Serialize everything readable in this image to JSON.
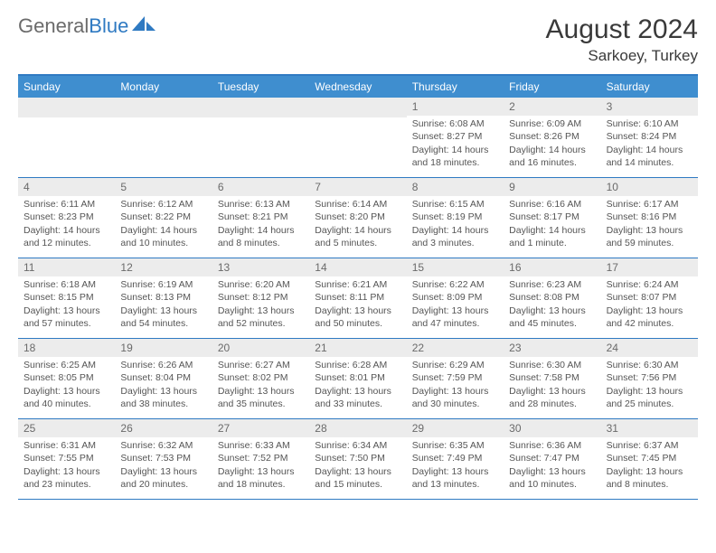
{
  "logo": {
    "text1": "General",
    "text2": "Blue"
  },
  "title": "August 2024",
  "subtitle": "Sarkoey, Turkey",
  "day_names": [
    "Sunday",
    "Monday",
    "Tuesday",
    "Wednesday",
    "Thursday",
    "Friday",
    "Saturday"
  ],
  "colors": {
    "header_bg": "#3f8ecf",
    "border": "#2f7ac2",
    "daynum_bg": "#ececec"
  },
  "weeks": [
    [
      {
        "n": "",
        "sr": "",
        "ss": "",
        "dl": ""
      },
      {
        "n": "",
        "sr": "",
        "ss": "",
        "dl": ""
      },
      {
        "n": "",
        "sr": "",
        "ss": "",
        "dl": ""
      },
      {
        "n": "",
        "sr": "",
        "ss": "",
        "dl": ""
      },
      {
        "n": "1",
        "sr": "Sunrise: 6:08 AM",
        "ss": "Sunset: 8:27 PM",
        "dl": "Daylight: 14 hours and 18 minutes."
      },
      {
        "n": "2",
        "sr": "Sunrise: 6:09 AM",
        "ss": "Sunset: 8:26 PM",
        "dl": "Daylight: 14 hours and 16 minutes."
      },
      {
        "n": "3",
        "sr": "Sunrise: 6:10 AM",
        "ss": "Sunset: 8:24 PM",
        "dl": "Daylight: 14 hours and 14 minutes."
      }
    ],
    [
      {
        "n": "4",
        "sr": "Sunrise: 6:11 AM",
        "ss": "Sunset: 8:23 PM",
        "dl": "Daylight: 14 hours and 12 minutes."
      },
      {
        "n": "5",
        "sr": "Sunrise: 6:12 AM",
        "ss": "Sunset: 8:22 PM",
        "dl": "Daylight: 14 hours and 10 minutes."
      },
      {
        "n": "6",
        "sr": "Sunrise: 6:13 AM",
        "ss": "Sunset: 8:21 PM",
        "dl": "Daylight: 14 hours and 8 minutes."
      },
      {
        "n": "7",
        "sr": "Sunrise: 6:14 AM",
        "ss": "Sunset: 8:20 PM",
        "dl": "Daylight: 14 hours and 5 minutes."
      },
      {
        "n": "8",
        "sr": "Sunrise: 6:15 AM",
        "ss": "Sunset: 8:19 PM",
        "dl": "Daylight: 14 hours and 3 minutes."
      },
      {
        "n": "9",
        "sr": "Sunrise: 6:16 AM",
        "ss": "Sunset: 8:17 PM",
        "dl": "Daylight: 14 hours and 1 minute."
      },
      {
        "n": "10",
        "sr": "Sunrise: 6:17 AM",
        "ss": "Sunset: 8:16 PM",
        "dl": "Daylight: 13 hours and 59 minutes."
      }
    ],
    [
      {
        "n": "11",
        "sr": "Sunrise: 6:18 AM",
        "ss": "Sunset: 8:15 PM",
        "dl": "Daylight: 13 hours and 57 minutes."
      },
      {
        "n": "12",
        "sr": "Sunrise: 6:19 AM",
        "ss": "Sunset: 8:13 PM",
        "dl": "Daylight: 13 hours and 54 minutes."
      },
      {
        "n": "13",
        "sr": "Sunrise: 6:20 AM",
        "ss": "Sunset: 8:12 PM",
        "dl": "Daylight: 13 hours and 52 minutes."
      },
      {
        "n": "14",
        "sr": "Sunrise: 6:21 AM",
        "ss": "Sunset: 8:11 PM",
        "dl": "Daylight: 13 hours and 50 minutes."
      },
      {
        "n": "15",
        "sr": "Sunrise: 6:22 AM",
        "ss": "Sunset: 8:09 PM",
        "dl": "Daylight: 13 hours and 47 minutes."
      },
      {
        "n": "16",
        "sr": "Sunrise: 6:23 AM",
        "ss": "Sunset: 8:08 PM",
        "dl": "Daylight: 13 hours and 45 minutes."
      },
      {
        "n": "17",
        "sr": "Sunrise: 6:24 AM",
        "ss": "Sunset: 8:07 PM",
        "dl": "Daylight: 13 hours and 42 minutes."
      }
    ],
    [
      {
        "n": "18",
        "sr": "Sunrise: 6:25 AM",
        "ss": "Sunset: 8:05 PM",
        "dl": "Daylight: 13 hours and 40 minutes."
      },
      {
        "n": "19",
        "sr": "Sunrise: 6:26 AM",
        "ss": "Sunset: 8:04 PM",
        "dl": "Daylight: 13 hours and 38 minutes."
      },
      {
        "n": "20",
        "sr": "Sunrise: 6:27 AM",
        "ss": "Sunset: 8:02 PM",
        "dl": "Daylight: 13 hours and 35 minutes."
      },
      {
        "n": "21",
        "sr": "Sunrise: 6:28 AM",
        "ss": "Sunset: 8:01 PM",
        "dl": "Daylight: 13 hours and 33 minutes."
      },
      {
        "n": "22",
        "sr": "Sunrise: 6:29 AM",
        "ss": "Sunset: 7:59 PM",
        "dl": "Daylight: 13 hours and 30 minutes."
      },
      {
        "n": "23",
        "sr": "Sunrise: 6:30 AM",
        "ss": "Sunset: 7:58 PM",
        "dl": "Daylight: 13 hours and 28 minutes."
      },
      {
        "n": "24",
        "sr": "Sunrise: 6:30 AM",
        "ss": "Sunset: 7:56 PM",
        "dl": "Daylight: 13 hours and 25 minutes."
      }
    ],
    [
      {
        "n": "25",
        "sr": "Sunrise: 6:31 AM",
        "ss": "Sunset: 7:55 PM",
        "dl": "Daylight: 13 hours and 23 minutes."
      },
      {
        "n": "26",
        "sr": "Sunrise: 6:32 AM",
        "ss": "Sunset: 7:53 PM",
        "dl": "Daylight: 13 hours and 20 minutes."
      },
      {
        "n": "27",
        "sr": "Sunrise: 6:33 AM",
        "ss": "Sunset: 7:52 PM",
        "dl": "Daylight: 13 hours and 18 minutes."
      },
      {
        "n": "28",
        "sr": "Sunrise: 6:34 AM",
        "ss": "Sunset: 7:50 PM",
        "dl": "Daylight: 13 hours and 15 minutes."
      },
      {
        "n": "29",
        "sr": "Sunrise: 6:35 AM",
        "ss": "Sunset: 7:49 PM",
        "dl": "Daylight: 13 hours and 13 minutes."
      },
      {
        "n": "30",
        "sr": "Sunrise: 6:36 AM",
        "ss": "Sunset: 7:47 PM",
        "dl": "Daylight: 13 hours and 10 minutes."
      },
      {
        "n": "31",
        "sr": "Sunrise: 6:37 AM",
        "ss": "Sunset: 7:45 PM",
        "dl": "Daylight: 13 hours and 8 minutes."
      }
    ]
  ]
}
